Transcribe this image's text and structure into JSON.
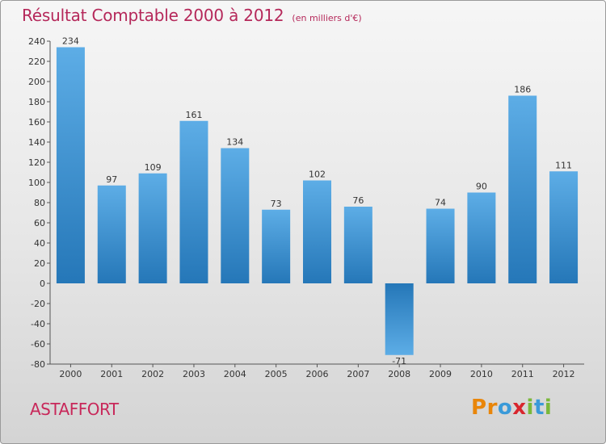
{
  "chart_data": {
    "type": "bar",
    "title": "Résultat Comptable 2000 à 2012",
    "subtitle": "(en milliers d'€)",
    "categories": [
      "2000",
      "2001",
      "2002",
      "2003",
      "2004",
      "2005",
      "2006",
      "2007",
      "2008",
      "2009",
      "2010",
      "2011",
      "2012"
    ],
    "values": [
      234,
      97,
      109,
      161,
      134,
      73,
      102,
      76,
      -71,
      74,
      90,
      186,
      111
    ],
    "ylim": [
      -80,
      240
    ],
    "yticks": [
      240,
      220,
      200,
      180,
      160,
      140,
      120,
      100,
      80,
      60,
      40,
      20,
      0,
      -20,
      -40,
      -60,
      -80
    ],
    "xlabel": "",
    "ylabel": "",
    "grid": false,
    "colors": {
      "bar_light": "#5dade6",
      "bar_dark": "#2577b8",
      "title": "#b5285a"
    }
  },
  "location": "ASTAFFORT",
  "logo": {
    "letters": [
      {
        "char": "P",
        "color": "#e9860a"
      },
      {
        "char": "r",
        "color": "#e9860a"
      },
      {
        "char": "o",
        "color": "#3a9ad9"
      },
      {
        "char": "x",
        "color": "#d8262e"
      },
      {
        "char": "i",
        "color": "#7ab83a"
      },
      {
        "char": "t",
        "color": "#3a9ad9"
      },
      {
        "char": "i",
        "color": "#7ab83a"
      }
    ]
  }
}
